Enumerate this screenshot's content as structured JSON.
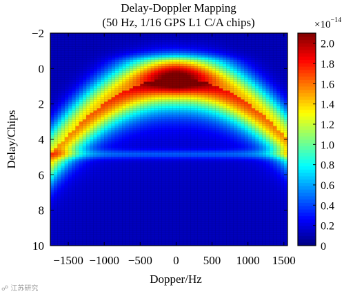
{
  "chart_data": {
    "type": "heatmap",
    "title": "Delay-Doppler Mapping",
    "subtitle": "(50 Hz, 1/16 GPS L1 C/A chips)",
    "xlabel": "Dopper/Hz",
    "ylabel": "Delay/Chips",
    "xlim": [
      -1750,
      1550
    ],
    "ylim": [
      -2,
      10
    ],
    "y_inverted": true,
    "x_ticks": [
      -1500,
      -1000,
      -500,
      0,
      500,
      1000,
      1500
    ],
    "x_tick_labels": [
      "−1500",
      "−1000",
      "−500",
      "0",
      "500",
      "1000",
      "1500"
    ],
    "y_ticks": [
      -2,
      0,
      2,
      4,
      6,
      8,
      10
    ],
    "y_tick_labels": [
      "−2",
      "0",
      "2",
      "4",
      "6",
      "8",
      "10"
    ],
    "x_step": 50,
    "y_step": 0.0625,
    "colorbar": {
      "colormap": "jet",
      "min": 0,
      "max": 2.1,
      "ticks": [
        0,
        0.2,
        0.4,
        0.6,
        0.8,
        1.0,
        1.2,
        1.4,
        1.6,
        1.8,
        2.0
      ],
      "tick_labels": [
        "0",
        "0.2",
        "0.4",
        "0.6",
        "0.8",
        "1.0",
        "1.2",
        "1.4",
        "1.6",
        "1.8",
        "2.0"
      ],
      "exponent_base": "×10",
      "exponent": "−14"
    },
    "peak": {
      "delay": 0.5,
      "doppler": 0,
      "value": 2.0
    }
  },
  "watermark": "江苏研究"
}
